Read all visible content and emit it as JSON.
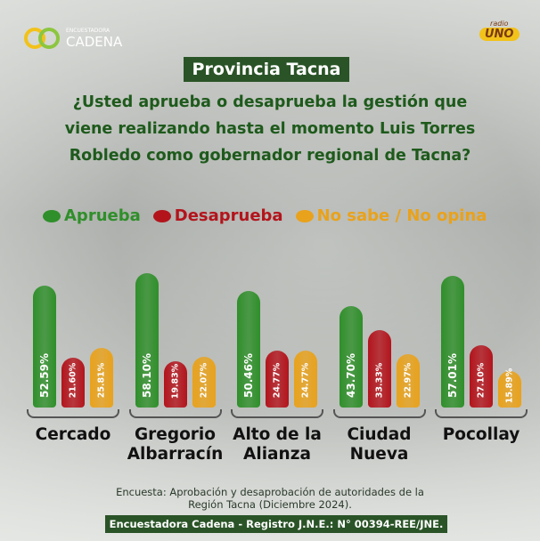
{
  "chart_data": {
    "type": "bar",
    "title": "Provincia Tacna",
    "subtitle": "¿Usted aprueba o desaprueba la gestión que viene realizando hasta el momento Luis Torres Robledo como gobernador regional de Tacna?",
    "categories": [
      "Cercado",
      "Gregorio Albarracín",
      "Alto de la Alianza",
      "Ciudad Nueva",
      "Pocollay"
    ],
    "series": [
      {
        "name": "Aprueba",
        "color": "#2f8f2a",
        "values": [
          52.59,
          58.1,
          50.46,
          43.7,
          57.01
        ],
        "value_labels": [
          "52.59%",
          "58.10%",
          "50.46%",
          "43.70%",
          "57.01%"
        ]
      },
      {
        "name": "Desaprueba",
        "color": "#b3141c",
        "values": [
          21.6,
          19.83,
          24.77,
          33.33,
          27.1
        ],
        "value_labels": [
          "21.60%",
          "19.83%",
          "24.77%",
          "33.33%",
          "27.10%"
        ]
      },
      {
        "name": "No sabe / No opina",
        "color": "#e9a21b",
        "values": [
          25.81,
          22.07,
          24.77,
          22.97,
          15.89
        ],
        "value_labels": [
          "25.81%",
          "22.07%",
          "24.77%",
          "22.97%",
          "15.89%"
        ]
      }
    ],
    "source": "Encuesta: Aprobación y desaprobación de autoridades de la Región Tacna (Diciembre 2024).",
    "footer": "Encuestadora Cadena - Registro J.N.E.: N° 00394-REE/JNE.",
    "logos": {
      "brand_top": "ENCUESTADORA",
      "brand_name": "CADENA",
      "radio_label": "radio",
      "radio_name": "UNO"
    }
  }
}
